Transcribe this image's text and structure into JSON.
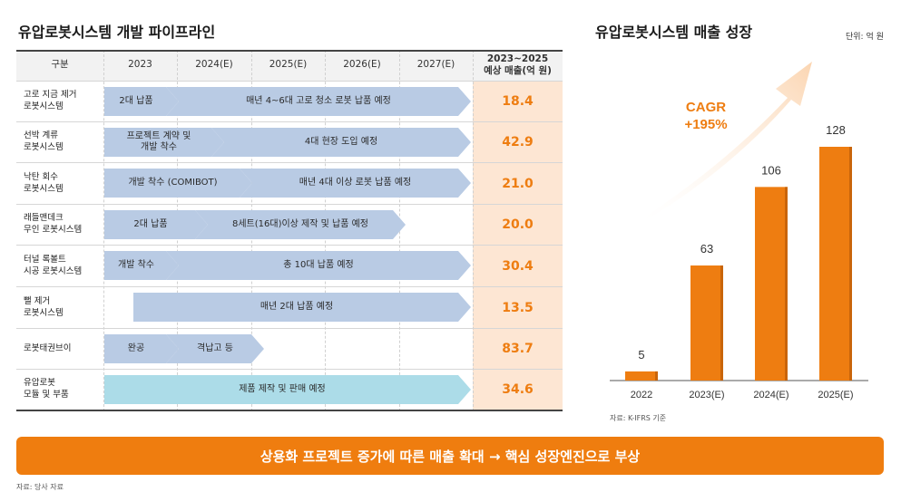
{
  "left_title": "유압로봇시스템 개발 파이프라인",
  "right_title": "유압로봇시스템 매출 성장",
  "unit": "단위: 억 원",
  "table": {
    "headers": [
      "구분",
      "2023",
      "2024(E)",
      "2025(E)",
      "2026(E)",
      "2027(E)",
      "2023~2025\n예상 매출(억 원)"
    ],
    "rows": [
      {
        "label": "고로 지금 제거\n로봇시스템",
        "value": "18.4",
        "bars": [
          "2대 납품",
          "매년 4~6대 고로 청소 로봇 납품 예정"
        ]
      },
      {
        "label": "선박 계류\n로봇시스템",
        "value": "42.9",
        "bars": [
          "프로젝트 계약 및\n개발 착수",
          "4대 현장 도입 예정"
        ]
      },
      {
        "label": "낙탄 회수\n로봇시스템",
        "value": "21.0",
        "bars": [
          "개발 착수 (COMIBOT)",
          "매년 4대 이상 로봇 납품 예정"
        ]
      },
      {
        "label": "래들맨데크\n무인 로봇시스템",
        "value": "20.0",
        "bars": [
          "2대 납품",
          "8세트(16대)이상 제작 및 납품 예정"
        ]
      },
      {
        "label": "터널 록볼트\n시공 로봇시스템",
        "value": "30.4",
        "bars": [
          "개발 착수",
          "총 10대 납품 예정"
        ]
      },
      {
        "label": "뻘 제거\n로봇시스템",
        "value": "13.5",
        "bars": [
          "매년 2대 납품 예정"
        ]
      },
      {
        "label": "로봇태권브이",
        "value": "83.7",
        "bars": [
          "완공",
          "격납고 등"
        ]
      },
      {
        "label": "유압로봇\n모듈 및 부품",
        "value": "34.6",
        "bars": [
          "제품 제작 및 판매 예정"
        ]
      }
    ]
  },
  "chart_data": {
    "type": "bar",
    "title": "유압로봇시스템 매출 성장",
    "unit": "단위: 억 원",
    "categories": [
      "2022",
      "2023(E)",
      "2024(E)",
      "2025(E)"
    ],
    "values": [
      5,
      63,
      106,
      128
    ],
    "ylim": [
      0,
      140
    ],
    "annotation": "CAGR\n+195%",
    "colors": {
      "bar": "#ee7d11",
      "bar_shade": "#c9650a",
      "arrow": "#fbd5b1",
      "annotation": "#ee7d11"
    }
  },
  "chart_source": "자료: K-IFRS 기준",
  "banner": "상용화 프로젝트 증가에 따른 매출 확대 → 핵심 성장엔진으로 부상",
  "bottom_source": "자료: 당사 자료"
}
